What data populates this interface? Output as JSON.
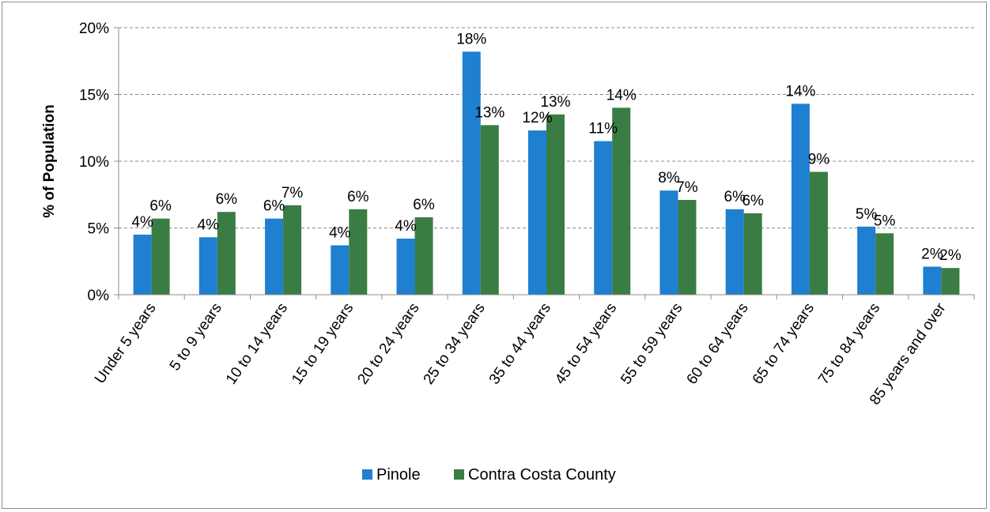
{
  "chart_data": {
    "type": "bar",
    "ylabel": "% of Population",
    "xlabel": "",
    "ylim": [
      0,
      20
    ],
    "yticks": [
      "0%",
      "5%",
      "10%",
      "15%",
      "20%"
    ],
    "ytick_values": [
      0,
      5,
      10,
      15,
      20
    ],
    "grid": "horizontal dashed",
    "legend_position": "bottom",
    "categories": [
      "Under 5 years",
      "5 to 9 years",
      "10 to 14 years",
      "15 to 19 years",
      "20 to 24 years",
      "25 to 34 years",
      "35 to 44 years",
      "45 to 54 years",
      "55 to 59 years",
      "60 to 64 years",
      "65 to 74 years",
      "75 to 84 years",
      "85 years and over"
    ],
    "series": [
      {
        "name": "Pinole",
        "color": "#1f7fd0",
        "values": [
          4.5,
          4.3,
          5.7,
          3.7,
          4.2,
          18.2,
          12.3,
          11.5,
          7.8,
          6.4,
          14.3,
          5.1,
          2.1
        ],
        "labels": [
          "4%",
          "4%",
          "6%",
          "4%",
          "4%",
          "18%",
          "12%",
          "11%",
          "8%",
          "6%",
          "14%",
          "5%",
          "2%"
        ]
      },
      {
        "name": "Contra Costa County",
        "color": "#3a7d44",
        "values": [
          5.7,
          6.2,
          6.7,
          6.4,
          5.8,
          12.7,
          13.5,
          14.0,
          7.1,
          6.1,
          9.2,
          4.6,
          2.0
        ],
        "labels": [
          "6%",
          "6%",
          "7%",
          "6%",
          "6%",
          "13%",
          "13%",
          "14%",
          "7%",
          "6%",
          "9%",
          "5%",
          "2%"
        ]
      }
    ]
  }
}
